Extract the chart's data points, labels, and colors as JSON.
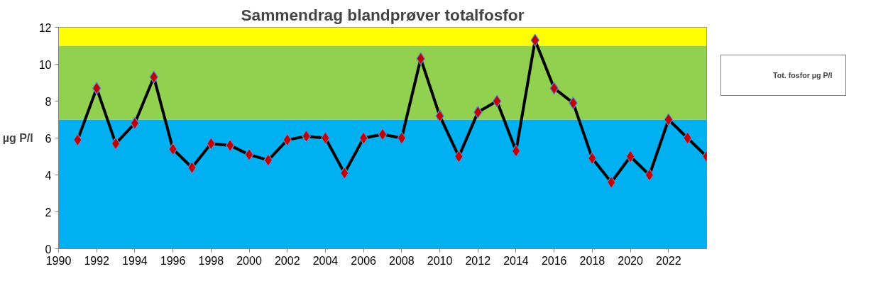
{
  "chart_data": {
    "type": "line",
    "title": "Sammendrag blandprøver totalfosfor",
    "ylabel": "µg P/l",
    "x": [
      1991,
      1992,
      1993,
      1994,
      1995,
      1996,
      1997,
      1998,
      1999,
      2000,
      2001,
      2002,
      2003,
      2004,
      2005,
      2006,
      2007,
      2008,
      2009,
      2010,
      2011,
      2012,
      2013,
      2014,
      2015,
      2016,
      2017,
      2018,
      2019,
      2020,
      2021,
      2022,
      2023,
      2024
    ],
    "series": [
      {
        "name": "Tot. fosfor µg P/l",
        "color": "#000000",
        "values": [
          5.9,
          8.7,
          5.7,
          6.8,
          9.3,
          5.4,
          4.4,
          5.7,
          5.6,
          5.1,
          4.8,
          5.9,
          6.1,
          6.0,
          4.1,
          6.0,
          6.2,
          6.0,
          10.3,
          7.2,
          5.0,
          7.4,
          8.0,
          5.3,
          11.3,
          8.7,
          7.9,
          4.9,
          3.6,
          5.0,
          4.0,
          7.0,
          6.0,
          5.0
        ]
      }
    ],
    "marker": "diamond",
    "line_style": "solid",
    "xlim": [
      1990,
      2024
    ],
    "xticks": [
      1990,
      1992,
      1994,
      1996,
      1998,
      2000,
      2002,
      2004,
      2006,
      2008,
      2010,
      2012,
      2014,
      2016,
      2018,
      2020,
      2022
    ],
    "ylim": [
      0,
      12
    ],
    "yticks": [
      0,
      2,
      4,
      6,
      8,
      10,
      12
    ],
    "bands": [
      {
        "axis": "y",
        "from": 0,
        "to": 7,
        "color": "#00b0f0"
      },
      {
        "axis": "y",
        "from": 7,
        "to": 11,
        "color": "#92d050"
      },
      {
        "axis": "y",
        "from": 11,
        "to": 12,
        "color": "#ffff00"
      }
    ],
    "grid": "y",
    "legend": "right"
  }
}
